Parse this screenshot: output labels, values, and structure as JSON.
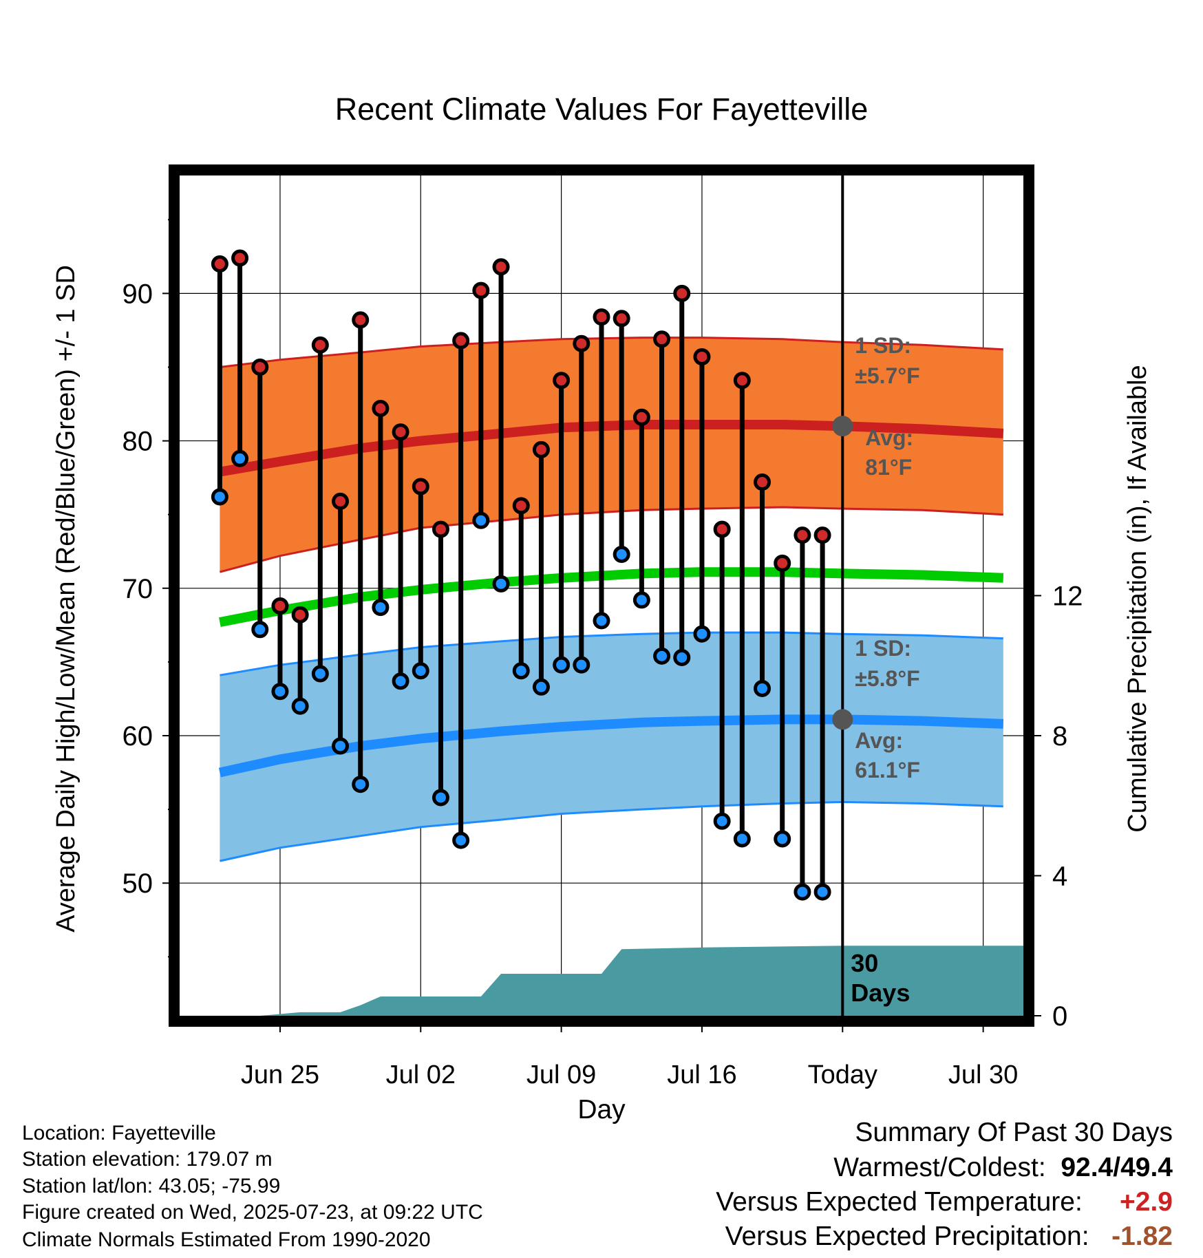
{
  "chart_data": {
    "type": "line",
    "title": "Recent Climate Values For Fayetteville",
    "xlabel": "Day",
    "ylabel": "Average Daily High/Low/Mean (Red/Blue/Green) +/- 1 SD",
    "y2label": "Cumulative Precipitation (in), If Available",
    "ylim": [
      41,
      98
    ],
    "y2lim": [
      0,
      24
    ],
    "xlim": [
      "2025-06-20",
      "2025-08-01"
    ],
    "yticks": [
      50,
      60,
      70,
      80,
      90
    ],
    "y2ticks": [
      0,
      4,
      8,
      12
    ],
    "xtick_labels": [
      {
        "date": "2025-06-25",
        "label": "Jun 25"
      },
      {
        "date": "2025-07-02",
        "label": "Jul 02"
      },
      {
        "date": "2025-07-09",
        "label": "Jul 09"
      },
      {
        "date": "2025-07-16",
        "label": "Jul 16"
      },
      {
        "date": "2025-07-23",
        "label": "Today"
      },
      {
        "date": "2025-07-30",
        "label": "Jul 30"
      }
    ],
    "today": "2025-07-23",
    "colors": {
      "high": "#cc2020",
      "high_band": "#f47a30",
      "low": "#1e8cff",
      "low_band": "#82c0e6",
      "mean": "#00cc00",
      "precip": "#4a9aa2",
      "annotation": "#555555"
    },
    "normal_high": {
      "dates": [
        "2025-06-22",
        "2025-06-25",
        "2025-06-29",
        "2025-07-02",
        "2025-07-06",
        "2025-07-09",
        "2025-07-13",
        "2025-07-16",
        "2025-07-20",
        "2025-07-23",
        "2025-07-27",
        "2025-07-31"
      ],
      "avg": [
        77.9,
        78.6,
        79.5,
        80.0,
        80.5,
        80.9,
        81.1,
        81.1,
        81.1,
        81.0,
        80.8,
        80.5
      ],
      "lower": [
        71.1,
        72.2,
        73.3,
        74.1,
        74.6,
        75.0,
        75.3,
        75.4,
        75.5,
        75.4,
        75.3,
        75.0
      ],
      "upper": [
        85.0,
        85.5,
        86.0,
        86.4,
        86.7,
        86.9,
        87.0,
        87.0,
        86.9,
        86.7,
        86.5,
        86.2
      ]
    },
    "normal_low": {
      "dates": [
        "2025-06-22",
        "2025-06-25",
        "2025-06-29",
        "2025-07-02",
        "2025-07-06",
        "2025-07-09",
        "2025-07-13",
        "2025-07-16",
        "2025-07-20",
        "2025-07-23",
        "2025-07-27",
        "2025-07-31"
      ],
      "avg": [
        57.5,
        58.4,
        59.3,
        59.8,
        60.3,
        60.6,
        60.9,
        61.0,
        61.1,
        61.1,
        61.0,
        60.8
      ],
      "lower": [
        51.5,
        52.4,
        53.2,
        53.8,
        54.3,
        54.7,
        55.0,
        55.2,
        55.4,
        55.5,
        55.4,
        55.2
      ],
      "upper": [
        64.1,
        64.8,
        65.5,
        66.0,
        66.4,
        66.7,
        66.9,
        67.0,
        67.0,
        66.9,
        66.8,
        66.6
      ]
    },
    "normal_mean": {
      "dates": [
        "2025-06-22",
        "2025-06-25",
        "2025-06-29",
        "2025-07-02",
        "2025-07-06",
        "2025-07-09",
        "2025-07-13",
        "2025-07-16",
        "2025-07-20",
        "2025-07-23",
        "2025-07-27",
        "2025-07-31"
      ],
      "values": [
        67.7,
        68.5,
        69.4,
        69.9,
        70.4,
        70.7,
        71.0,
        71.1,
        71.1,
        71.0,
        70.9,
        70.7
      ]
    },
    "observed": {
      "dates": [
        "2025-06-22",
        "2025-06-23",
        "2025-06-24",
        "2025-06-25",
        "2025-06-26",
        "2025-06-27",
        "2025-06-28",
        "2025-06-29",
        "2025-06-30",
        "2025-07-01",
        "2025-07-02",
        "2025-07-03",
        "2025-07-04",
        "2025-07-05",
        "2025-07-06",
        "2025-07-07",
        "2025-07-08",
        "2025-07-09",
        "2025-07-10",
        "2025-07-11",
        "2025-07-12",
        "2025-07-13",
        "2025-07-14",
        "2025-07-15",
        "2025-07-16",
        "2025-07-17",
        "2025-07-18",
        "2025-07-19",
        "2025-07-20",
        "2025-07-21",
        "2025-07-22"
      ],
      "high": [
        92.0,
        92.4,
        85.0,
        68.8,
        68.2,
        86.5,
        75.9,
        88.2,
        82.2,
        80.6,
        76.9,
        74.0,
        86.8,
        90.2,
        91.8,
        75.6,
        79.4,
        84.1,
        86.6,
        88.4,
        88.3,
        81.6,
        86.9,
        90.0,
        85.7,
        74.0,
        84.1,
        77.2,
        71.7,
        73.6,
        73.6
      ],
      "low": [
        76.2,
        78.8,
        67.2,
        63.0,
        62.0,
        64.2,
        59.3,
        56.7,
        68.7,
        63.7,
        64.4,
        55.8,
        52.9,
        74.6,
        70.3,
        64.4,
        63.3,
        64.8,
        64.8,
        67.8,
        72.3,
        69.2,
        65.4,
        65.3,
        66.9,
        54.2,
        53.0,
        63.2,
        53.0,
        49.4,
        49.4
      ]
    },
    "precip_cumulative": {
      "dates": [
        "2025-06-20",
        "2025-06-24",
        "2025-06-26",
        "2025-06-28",
        "2025-06-29",
        "2025-06-30",
        "2025-07-01",
        "2025-07-05",
        "2025-07-06",
        "2025-07-10",
        "2025-07-11",
        "2025-07-12",
        "2025-07-16",
        "2025-07-23",
        "2025-08-01"
      ],
      "values": [
        0.0,
        0.0,
        0.1,
        0.1,
        0.3,
        0.55,
        0.55,
        0.55,
        1.2,
        1.2,
        1.2,
        1.9,
        1.95,
        2.0,
        2.0
      ]
    },
    "annotations": {
      "high_sd_label": "1 SD:",
      "high_sd_value": "±5.7°F",
      "high_avg_label": "Avg:",
      "high_avg_value": "81°F",
      "low_sd_label": "1 SD:",
      "low_sd_value": "±5.8°F",
      "low_avg_label": "Avg:",
      "low_avg_value": "61.1°F",
      "precip_days_line1": "30",
      "precip_days_line2": "Days"
    }
  },
  "info": {
    "location": "Location: Fayetteville",
    "elevation": "Station elevation: 179.07 m",
    "latlon": "Station lat/lon: 43.05; -75.99",
    "created": "Figure created on Wed, 2025-07-23, at 09:22 UTC",
    "normals": "Climate Normals Estimated From 1990-2020"
  },
  "summary": {
    "title": "Summary Of Past 30 Days",
    "warmest_label": "Warmest/Coldest:",
    "warmest_value": "92.4/49.4",
    "temp_label": "Versus Expected Temperature:",
    "temp_value": "+2.9",
    "temp_color": "#cc2222",
    "precip_label": "Versus Expected Precipitation:",
    "precip_value": "-1.82",
    "precip_color": "#a0522d"
  }
}
